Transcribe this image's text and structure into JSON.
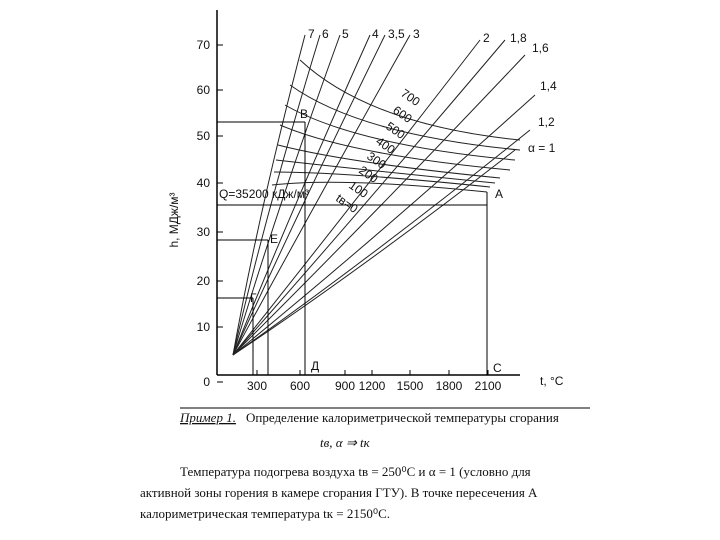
{
  "axis": {
    "y_label": "h, МДж/м³",
    "x_label": "t, °C",
    "y_ticks": [
      "70",
      "60",
      "50",
      "40",
      "30",
      "20",
      "10",
      "0"
    ],
    "x_ticks": [
      "300",
      "600",
      "900",
      "1200",
      "1500",
      "1800",
      "2100"
    ]
  },
  "alpha_labels": [
    "7",
    "6",
    "5",
    "4",
    "3,5",
    "3",
    "2",
    "1,8",
    "1,6",
    "1,4",
    "1,2",
    "α = 1"
  ],
  "isotherm_labels": [
    "700",
    "600",
    "500",
    "400",
    "300",
    "200",
    "100",
    "tв=0"
  ],
  "points": [
    "B",
    "A",
    "E",
    "Г",
    "Д",
    "C"
  ],
  "q_label": "Q=35200 кДж/м³",
  "caption": {
    "example": "Пример 1.",
    "title": "Определение калориметрической температуры сгорания",
    "formula": "tв, α ⇒ tк",
    "lines": [
      "Температура подогрева воздуха  tв = 250⁰С  и  α = 1  (условно для",
      "активной зоны горения в камере сгорания ГТУ). В точке пересечения  А",
      "калориметрическая температура  tк = 2150⁰С."
    ]
  }
}
